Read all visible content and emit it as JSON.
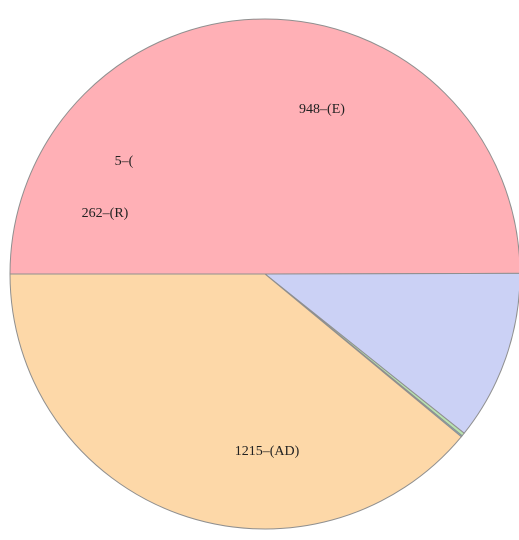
{
  "chart_data": {
    "type": "pie",
    "title": "",
    "slices": [
      {
        "label": "1215–(AD)",
        "value": 1215,
        "color": "#ffb0b6"
      },
      {
        "label": "262–(R)",
        "value": 262,
        "color": "#cbd1f5"
      },
      {
        "label": "5–(",
        "value": 5,
        "color": "#b8e3b0"
      },
      {
        "label": "",
        "value": 2,
        "color": "#67c9e9"
      },
      {
        "label": "948–(E)",
        "value": 948,
        "color": "#fdd8a8"
      }
    ],
    "legend": "none"
  }
}
